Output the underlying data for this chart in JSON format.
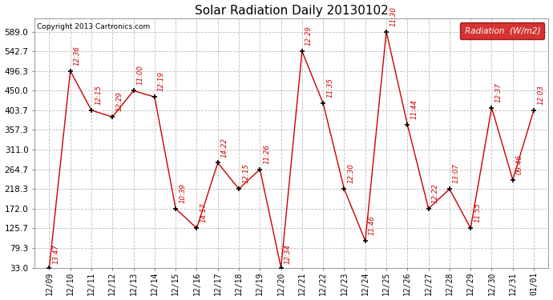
{
  "title": "Solar Radiation Daily 20130102",
  "copyright": "Copyright 2013 Cartronics.com",
  "legend_label": "Radiation  (W/m2)",
  "x_labels": [
    "12/09",
    "12/10",
    "12/11",
    "12/12",
    "12/13",
    "12/14",
    "12/15",
    "12/16",
    "12/17",
    "12/18",
    "12/19",
    "12/20",
    "12/21",
    "12/22",
    "12/23",
    "12/24",
    "12/25",
    "12/26",
    "12/27",
    "12/28",
    "12/29",
    "12/30",
    "12/31",
    "01/01"
  ],
  "y_values": [
    33.0,
    496.3,
    403.7,
    388.0,
    450.0,
    435.0,
    172.0,
    125.7,
    280.0,
    218.3,
    264.7,
    33.0,
    542.7,
    420.0,
    218.3,
    96.0,
    589.0,
    370.0,
    172.0,
    218.3,
    125.7,
    410.0,
    240.0,
    403.7
  ],
  "time_labels": [
    "13:47",
    "12:36",
    "12:15",
    "12:29",
    "11:00",
    "12:19",
    "10:39",
    "14:17",
    "14:22",
    "12:15",
    "11:26",
    "12:34",
    "12:29",
    "11:35",
    "12:30",
    "11:46",
    "11:30",
    "11:44",
    "12:22",
    "13:07",
    "11:55",
    "12:37",
    "09:46",
    "12:03"
  ],
  "ylim": [
    33.0,
    620.0
  ],
  "yticks": [
    33.0,
    79.3,
    125.7,
    172.0,
    218.3,
    264.7,
    311.0,
    357.3,
    403.7,
    450.0,
    496.3,
    542.7,
    589.0
  ],
  "line_color": "#cc0000",
  "marker_color": "#000000",
  "label_color": "#cc0000",
  "bg_color": "#ffffff",
  "grid_color": "#bbbbbb",
  "title_color": "#000000",
  "copyright_color": "#000000",
  "legend_bg": "#cc0000",
  "legend_text_color": "#ffffff"
}
